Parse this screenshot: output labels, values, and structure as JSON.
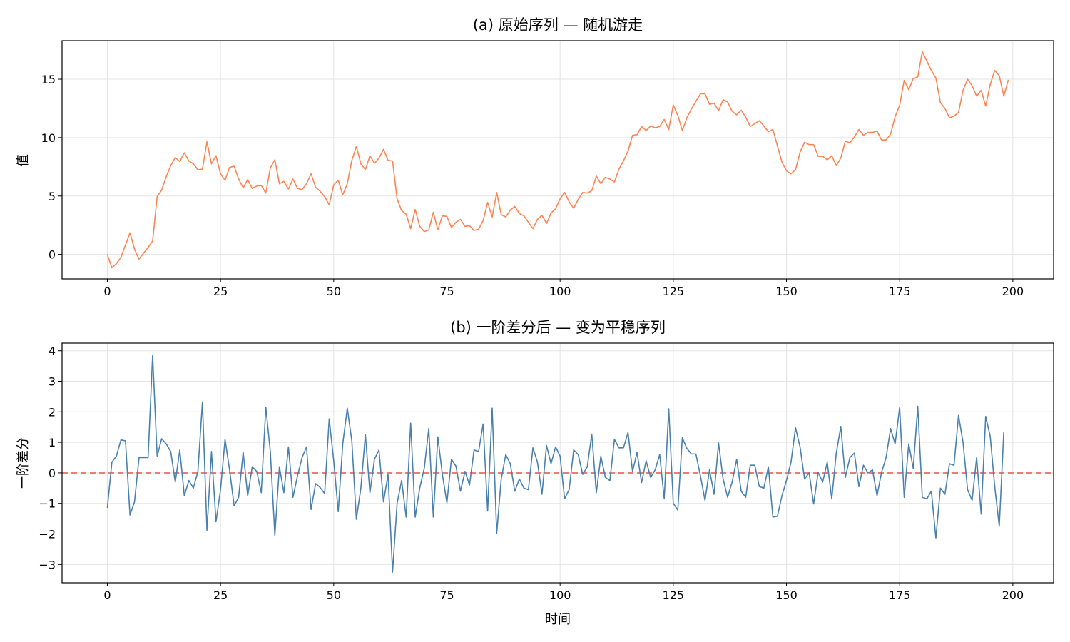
{
  "chart_data": [
    {
      "type": "line",
      "title": "(a) 原始序列 — 随机游走",
      "xlabel": "",
      "ylabel": "值",
      "xlim": [
        -10,
        209
      ],
      "ylim": [
        -2.1,
        18.3
      ],
      "xticks": [
        0,
        25,
        50,
        75,
        100,
        125,
        150,
        175,
        200
      ],
      "yticks": [
        0,
        5,
        10,
        15
      ],
      "grid": true,
      "color": "#ff8352",
      "series": [
        {
          "x_start": 0,
          "values": [
            0.0,
            -1.15,
            -0.8,
            -0.25,
            0.8,
            1.85,
            0.45,
            -0.4,
            0.1,
            0.6,
            1.15,
            4.95,
            5.5,
            6.65,
            7.6,
            8.3,
            7.95,
            8.7,
            8.0,
            7.75,
            7.25,
            7.3,
            9.65,
            7.75,
            8.45,
            6.9,
            6.35,
            7.45,
            7.55,
            6.45,
            5.7,
            6.4,
            5.65,
            5.85,
            5.9,
            5.25,
            7.4,
            8.1,
            6.05,
            6.25,
            5.6,
            6.45,
            5.65,
            5.55,
            6.05,
            6.9,
            5.75,
            5.4,
            4.95,
            4.25,
            5.95,
            6.35,
            5.1,
            6.05,
            8.05,
            9.25,
            7.75,
            7.25,
            8.45,
            7.8,
            8.25,
            9.0,
            8.05,
            8.0,
            4.75,
            3.75,
            3.45,
            2.2,
            3.85,
            2.4,
            1.95,
            2.1,
            3.6,
            2.1,
            3.3,
            3.25,
            2.3,
            2.75,
            3.0,
            2.4,
            2.45,
            2.05,
            2.15,
            2.9,
            4.45,
            3.2,
            5.3,
            3.4,
            3.2,
            3.8,
            4.1,
            3.5,
            3.3,
            2.75,
            2.2,
            3.0,
            3.35,
            2.65,
            3.55,
            3.9,
            4.75,
            5.3,
            4.5,
            3.95,
            4.7,
            5.3,
            5.25,
            5.45,
            6.7,
            6.05,
            6.6,
            6.45,
            6.2,
            7.3,
            8.0,
            8.85,
            10.2,
            10.25,
            10.95,
            10.6,
            11.0,
            10.85,
            10.95,
            11.55,
            10.7,
            12.8,
            11.9,
            10.6,
            11.7,
            12.45,
            13.1,
            13.75,
            13.75,
            12.85,
            12.95,
            12.3,
            13.25,
            13.05,
            12.25,
            11.95,
            12.35,
            11.75,
            10.95,
            11.2,
            11.45,
            11.0,
            10.5,
            10.7,
            9.3,
            7.9,
            7.15,
            6.9,
            7.25,
            8.75,
            9.6,
            9.4,
            9.4,
            8.4,
            8.4,
            8.1,
            8.45,
            7.6,
            8.25,
            9.7,
            9.55,
            10.05,
            10.7,
            10.2,
            10.45,
            10.45,
            10.55,
            9.8,
            9.8,
            10.3,
            11.8,
            12.75,
            14.9,
            14.1,
            15.05,
            15.2,
            17.35,
            16.55,
            15.75,
            15.1,
            13.0,
            12.5,
            11.7,
            11.85,
            12.15,
            14.05,
            15.0,
            14.45,
            13.55,
            14.05,
            12.7,
            14.55,
            15.75,
            15.3,
            13.55,
            14.95
          ]
        }
      ]
    },
    {
      "type": "line",
      "title": "(b) 一阶差分后 — 变为平稳序列",
      "xlabel": "时间",
      "ylabel": "一阶差分",
      "xlim": [
        -10,
        209
      ],
      "ylim": [
        -3.6,
        4.25
      ],
      "xticks": [
        0,
        25,
        50,
        75,
        100,
        125,
        150,
        175,
        200
      ],
      "yticks": [
        -3,
        -2,
        -1,
        0,
        1,
        2,
        3,
        4
      ],
      "grid": true,
      "color": "#4a80b0",
      "reference_line": {
        "y": 0,
        "style": "dashed",
        "color": "#f07a7a"
      },
      "series": [
        {
          "x_start": 0,
          "values": [
            -1.15,
            0.35,
            0.55,
            1.08,
            1.05,
            -1.38,
            -0.95,
            0.5,
            0.5,
            0.5,
            3.85,
            0.55,
            1.12,
            0.95,
            0.7,
            -0.3,
            0.75,
            -0.75,
            -0.25,
            -0.5,
            0.05,
            2.32,
            -1.88,
            0.7,
            -1.6,
            -0.55,
            1.1,
            0.1,
            -1.08,
            -0.8,
            0.68,
            -0.75,
            0.2,
            0.05,
            -0.65,
            2.15,
            0.7,
            -2.05,
            0.2,
            -0.65,
            0.85,
            -0.8,
            -0.1,
            0.5,
            0.85,
            -1.2,
            -0.35,
            -0.48,
            -0.68,
            1.77,
            0.4,
            -1.27,
            0.95,
            2.12,
            1.05,
            -1.52,
            -0.5,
            1.25,
            -0.65,
            0.45,
            0.75,
            -0.95,
            -0.05,
            -3.25,
            -1.0,
            -0.25,
            -1.45,
            1.63,
            -1.45,
            -0.5,
            0.15,
            1.45,
            -1.45,
            1.18,
            -0.05,
            -0.98,
            0.45,
            0.22,
            -0.6,
            0.05,
            -0.4,
            0.75,
            0.7,
            1.6,
            -1.25,
            2.12,
            -1.98,
            -0.2,
            0.6,
            0.3,
            -0.6,
            -0.2,
            -0.5,
            -0.55,
            0.82,
            0.35,
            -0.7,
            0.9,
            0.3,
            0.85,
            0.55,
            -0.85,
            -0.55,
            0.75,
            0.6,
            -0.05,
            0.2,
            1.27,
            -0.65,
            0.55,
            -0.15,
            -0.25,
            1.1,
            0.82,
            0.82,
            1.32,
            0.05,
            0.67,
            -0.32,
            0.4,
            -0.15,
            0.1,
            0.6,
            -0.85,
            2.1,
            -1.0,
            -1.22,
            1.15,
            0.8,
            0.62,
            0.62,
            -0.1,
            -0.9,
            0.1,
            -0.7,
            0.98,
            -0.2,
            -0.8,
            -0.3,
            0.45,
            -0.6,
            -0.8,
            0.25,
            0.25,
            -0.45,
            -0.5,
            0.2,
            -1.45,
            -1.42,
            -0.75,
            -0.25,
            0.35,
            1.48,
            0.85,
            -0.2,
            0.0,
            -1.02,
            0.02,
            -0.3,
            0.35,
            -0.85,
            0.65,
            1.52,
            -0.15,
            0.5,
            0.65,
            -0.45,
            0.25,
            0.0,
            0.1,
            -0.75,
            0.02,
            0.5,
            1.45,
            0.95,
            2.15,
            -0.8,
            0.95,
            0.15,
            2.18,
            -0.8,
            -0.85,
            -0.6,
            -2.13,
            -0.5,
            -0.7,
            0.3,
            0.25,
            1.88,
            1.0,
            -0.55,
            -0.9,
            0.5,
            -1.35,
            1.85,
            1.2,
            -0.45,
            -1.75,
            1.35
          ]
        }
      ]
    }
  ]
}
